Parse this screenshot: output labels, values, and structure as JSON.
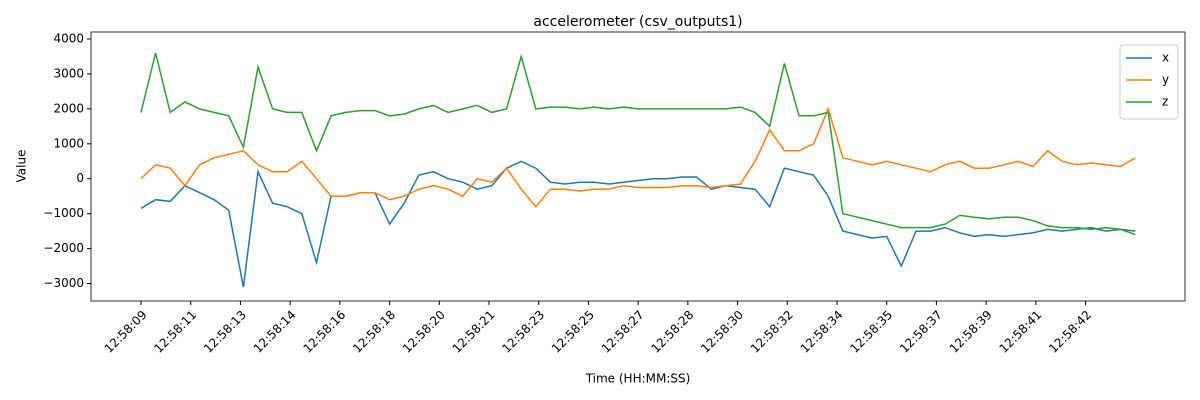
{
  "chart_data": {
    "type": "line",
    "title": "accelerometer (csv_outputs1)",
    "x_label": "Time (HH:MM:SS)",
    "y_label": "Value",
    "x": [
      0,
      0.5,
      1,
      1.5,
      2,
      2.5,
      3,
      3.5,
      4,
      4.5,
      5,
      5.5,
      6,
      6.5,
      7,
      7.5,
      8,
      8.5,
      9,
      9.5,
      10,
      10.5,
      11,
      11.5,
      12,
      12.5,
      13,
      13.5,
      14,
      14.5,
      15,
      15.5,
      16,
      16.5,
      17,
      17.5,
      18,
      18.5,
      19,
      19.5,
      20,
      20.5,
      21,
      21.5,
      22,
      22.5,
      23,
      23.5,
      24,
      24.5,
      25,
      25.5,
      26,
      26.5,
      27,
      27.5,
      28,
      28.5,
      29,
      29.5,
      30,
      30.5,
      31,
      31.5,
      32,
      32.5,
      33,
      33.5,
      34
    ],
    "series": [
      {
        "name": "x",
        "color": "#1f77b4",
        "values": [
          -850,
          -600,
          -650,
          -200,
          -400,
          -600,
          -900,
          -3100,
          200,
          -700,
          -800,
          -1000,
          -2400,
          -500,
          -500,
          -400,
          -400,
          -1300,
          -700,
          100,
          200,
          0,
          -100,
          -300,
          -200,
          300,
          500,
          300,
          -100,
          -150,
          -100,
          -100,
          -150,
          -100,
          -50,
          0,
          0,
          50,
          50,
          -300,
          -200,
          -250,
          -300,
          -800,
          300,
          200,
          100,
          -500,
          -1500,
          -1600,
          -1700,
          -1650,
          -2500,
          -1500,
          -1500,
          -1400,
          -1550,
          -1650,
          -1600,
          -1650,
          -1600,
          -1550,
          -1450,
          -1500,
          -1450,
          -1400,
          -1500,
          -1450,
          -1500
        ]
      },
      {
        "name": "y",
        "color": "#ff7f0e",
        "values": [
          0,
          400,
          300,
          -200,
          400,
          600,
          700,
          800,
          400,
          200,
          200,
          500,
          0,
          -500,
          -500,
          -400,
          -400,
          -600,
          -500,
          -300,
          -200,
          -300,
          -500,
          0,
          -100,
          300,
          -300,
          -800,
          -300,
          -300,
          -350,
          -300,
          -300,
          -200,
          -250,
          -250,
          -250,
          -200,
          -200,
          -250,
          -200,
          -150,
          500,
          1400,
          800,
          800,
          1000,
          2000,
          600,
          500,
          400,
          500,
          400,
          300,
          200,
          400,
          500,
          300,
          300,
          400,
          500,
          350,
          800,
          500,
          400,
          450,
          400,
          350,
          600
        ]
      },
      {
        "name": "z",
        "color": "#2ca02c",
        "values": [
          1900,
          3600,
          1900,
          2200,
          2000,
          1900,
          1800,
          900,
          3200,
          2000,
          1900,
          1900,
          800,
          1800,
          1900,
          1950,
          1950,
          1800,
          1850,
          2000,
          2100,
          1900,
          2000,
          2100,
          1900,
          2000,
          3500,
          2000,
          2050,
          2050,
          2000,
          2050,
          2000,
          2050,
          2000,
          2000,
          2000,
          2000,
          2000,
          2000,
          2000,
          2050,
          1900,
          1500,
          3300,
          1800,
          1800,
          1900,
          -1000,
          -1100,
          -1200,
          -1300,
          -1400,
          -1400,
          -1400,
          -1300,
          -1050,
          -1100,
          -1150,
          -1100,
          -1100,
          -1200,
          -1350,
          -1400,
          -1400,
          -1450,
          -1400,
          -1450,
          -1600
        ]
      }
    ],
    "xlim": [
      -1.71,
      35.7
    ],
    "xticks": [
      {
        "value": 0,
        "label": "12:58:09"
      },
      {
        "value": 1.7,
        "label": "12:58:11"
      },
      {
        "value": 3.4,
        "label": "12:58:13"
      },
      {
        "value": 5.1,
        "label": "12:58:14"
      },
      {
        "value": 6.8,
        "label": "12:58:16"
      },
      {
        "value": 8.5,
        "label": "12:58:18"
      },
      {
        "value": 10.2,
        "label": "12:58:20"
      },
      {
        "value": 11.9,
        "label": "12:58:21"
      },
      {
        "value": 13.6,
        "label": "12:58:23"
      },
      {
        "value": 15.3,
        "label": "12:58:25"
      },
      {
        "value": 17,
        "label": "12:58:27"
      },
      {
        "value": 18.7,
        "label": "12:58:28"
      },
      {
        "value": 20.4,
        "label": "12:58:30"
      },
      {
        "value": 22.1,
        "label": "12:58:32"
      },
      {
        "value": 23.8,
        "label": "12:58:34"
      },
      {
        "value": 25.5,
        "label": "12:58:35"
      },
      {
        "value": 27.2,
        "label": "12:58:37"
      },
      {
        "value": 28.9,
        "label": "12:58:39"
      },
      {
        "value": 30.6,
        "label": "12:58:41"
      },
      {
        "value": 32.3,
        "label": "12:58:42"
      }
    ],
    "ylim": [
      -3500,
      4200
    ],
    "yticks": [
      {
        "value": -3000,
        "label": "−3000"
      },
      {
        "value": -2000,
        "label": "−2000"
      },
      {
        "value": -1000,
        "label": "−1000"
      },
      0,
      1000,
      2000,
      3000,
      4000
    ],
    "legend": "upper right"
  }
}
